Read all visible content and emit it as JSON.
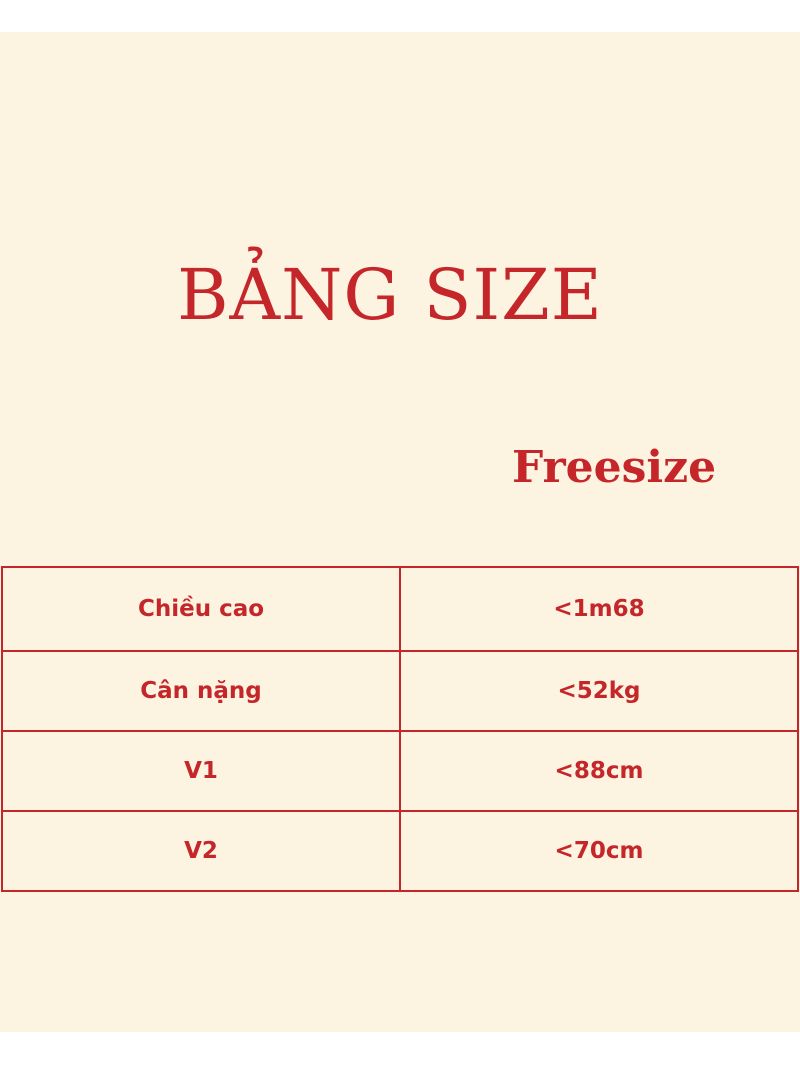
{
  "title": "BẢNG SIZE",
  "subtitle": "Freesize",
  "colors": {
    "accent": "#c4262a",
    "background": "#fdf3e1"
  },
  "rows": [
    {
      "label": "Chiều cao",
      "value": "<1m68"
    },
    {
      "label": "Cân nặng",
      "value": "<52kg"
    },
    {
      "label": "V1",
      "value": "<88cm"
    },
    {
      "label": "V2",
      "value": "<70cm"
    }
  ]
}
